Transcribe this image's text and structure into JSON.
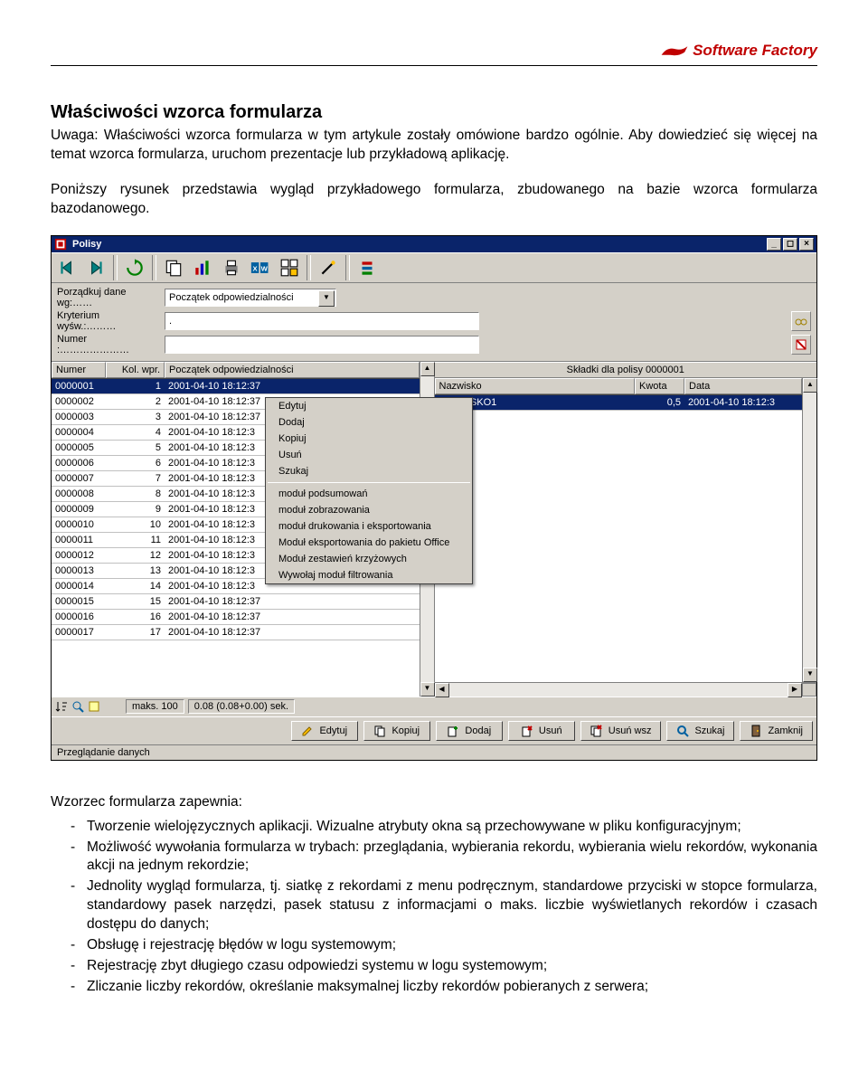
{
  "brand": "Software Factory",
  "heading": "Właściwości wzorca formularza",
  "intro": "Uwaga: Właściwości wzorca formularza w tym artykule zostały omówione bardzo ogólnie. Aby dowiedzieć się więcej na temat wzorca formularza, uruchom prezentacje lub przykładową aplikację.",
  "para2": "Poniższy rysunek przedstawia wygląd przykładowego formularza, zbudowanego na bazie wzorca formularza bazodanowego.",
  "window": {
    "title": "Polisy",
    "filters": {
      "sort_label": "Porządkuj dane wg:……",
      "sort_value": "Początek odpowiedzialności",
      "crit_label": "Kryterium wyśw.:………",
      "crit_value": ".",
      "num_label": "Numer :…………………"
    },
    "left": {
      "cols": [
        "Numer",
        "Kol. wpr.",
        "Początek odpowiedzialności"
      ],
      "rows": [
        [
          "0000001",
          "1",
          "2001-04-10 18:12:37"
        ],
        [
          "0000002",
          "2",
          "2001-04-10 18:12:37"
        ],
        [
          "0000003",
          "3",
          "2001-04-10 18:12:37"
        ],
        [
          "0000004",
          "4",
          "2001-04-10 18:12:3"
        ],
        [
          "0000005",
          "5",
          "2001-04-10 18:12:3"
        ],
        [
          "0000006",
          "6",
          "2001-04-10 18:12:3"
        ],
        [
          "0000007",
          "7",
          "2001-04-10 18:12:3"
        ],
        [
          "0000008",
          "8",
          "2001-04-10 18:12:3"
        ],
        [
          "0000009",
          "9",
          "2001-04-10 18:12:3"
        ],
        [
          "0000010",
          "10",
          "2001-04-10 18:12:3"
        ],
        [
          "0000011",
          "11",
          "2001-04-10 18:12:3"
        ],
        [
          "0000012",
          "12",
          "2001-04-10 18:12:3"
        ],
        [
          "0000013",
          "13",
          "2001-04-10 18:12:3"
        ],
        [
          "0000014",
          "14",
          "2001-04-10 18:12:3"
        ],
        [
          "0000015",
          "15",
          "2001-04-10 18:12:37"
        ],
        [
          "0000016",
          "16",
          "2001-04-10 18:12:37"
        ],
        [
          "0000017",
          "17",
          "2001-04-10 18:12:37"
        ]
      ]
    },
    "right": {
      "title": "Składki dla polisy 0000001",
      "cols": [
        "Nazwisko",
        "Kwota",
        "Data"
      ],
      "rows": [
        [
          "NAZWISKO1",
          "0,5",
          "2001-04-10 18:12:3"
        ]
      ]
    },
    "context_menu": {
      "group1": [
        "Edytuj",
        "Dodaj",
        "Kopiuj",
        "Usuń",
        "Szukaj"
      ],
      "group2": [
        "moduł podsumowań",
        "moduł zobrazowania",
        "moduł drukowania i eksportowania",
        "Moduł eksportowania do pakietu Office",
        "Moduł zestawień krzyżowych",
        "Wywołaj moduł filtrowania"
      ]
    },
    "status": {
      "maks": "maks. 100",
      "sek": "0.08 (0.08+0.00) sek."
    },
    "buttons": [
      "Edytuj",
      "Kopiuj",
      "Dodaj",
      "Usuń",
      "Usuń wsz",
      "Szukaj",
      "Zamknij"
    ],
    "statusbar": "Przeglądanie danych"
  },
  "after_heading": "Wzorzec formularza zapewnia:",
  "bullets": [
    "Tworzenie wielojęzycznych aplikacji. Wizualne atrybuty okna są przechowywane w pliku konfiguracyjnym;",
    "Możliwość wywołania formularza w trybach: przeglądania, wybierania rekordu, wybierania wielu rekordów, wykonania akcji na jednym rekordzie;",
    "Jednolity wygląd formularza, tj. siatkę z rekordami z menu podręcznym, standardowe przyciski w stopce formularza, standardowy pasek narzędzi, pasek statusu z informacjami o maks. liczbie wyświetlanych rekordów i czasach dostępu do danych;",
    "Obsługę i rejestrację błędów w logu systemowym;",
    "Rejestrację zbyt długiego czasu odpowiedzi systemu w logu systemowym;",
    "Zliczanie liczby rekordów, określanie maksymalnej liczby rekordów pobieranych z serwera;"
  ],
  "colors": {
    "brand": "#c00000",
    "titlebar": "#0a246a",
    "ui_gray": "#d4d0c8"
  }
}
